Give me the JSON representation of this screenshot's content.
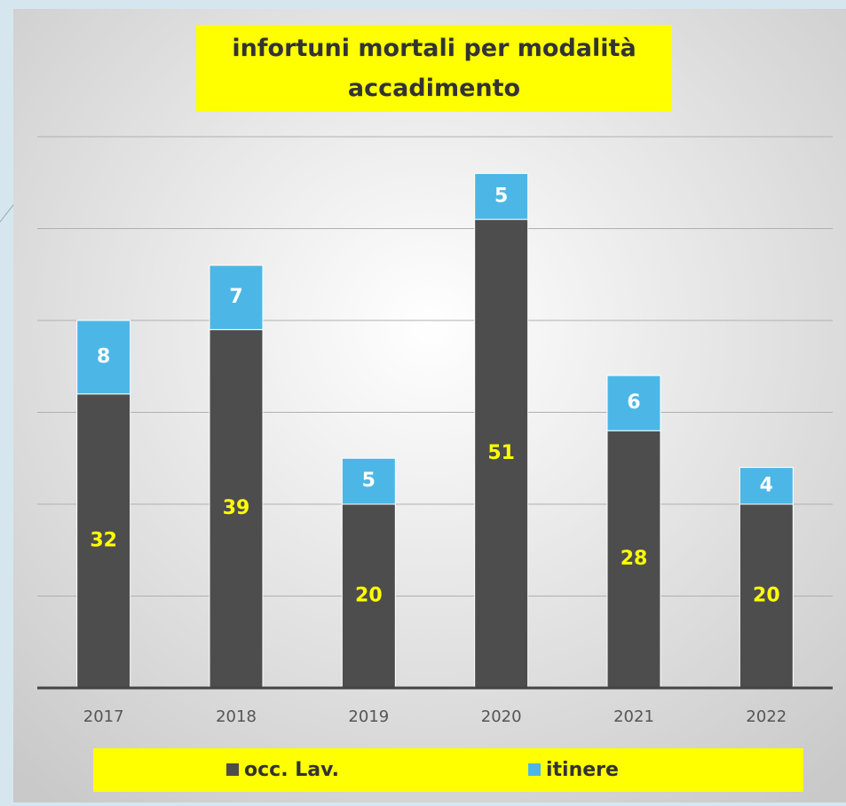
{
  "chart_data": {
    "type": "stacked_bar",
    "title": "infortuni mortali per modalità accadimento",
    "categories": [
      "2017",
      "2018",
      "2019",
      "2020",
      "2021",
      "2022"
    ],
    "series": [
      {
        "name": "occ. Lav.",
        "color": "#4d4d4d",
        "values": [
          32,
          39,
          20,
          51,
          28,
          20
        ]
      },
      {
        "name": "itinere",
        "color": "#4cb7e6",
        "values": [
          8,
          7,
          5,
          5,
          6,
          4
        ]
      }
    ],
    "ylim": [
      0,
      60
    ],
    "yticks": [
      0,
      10,
      20,
      30,
      40,
      50,
      60
    ],
    "grid": true
  }
}
